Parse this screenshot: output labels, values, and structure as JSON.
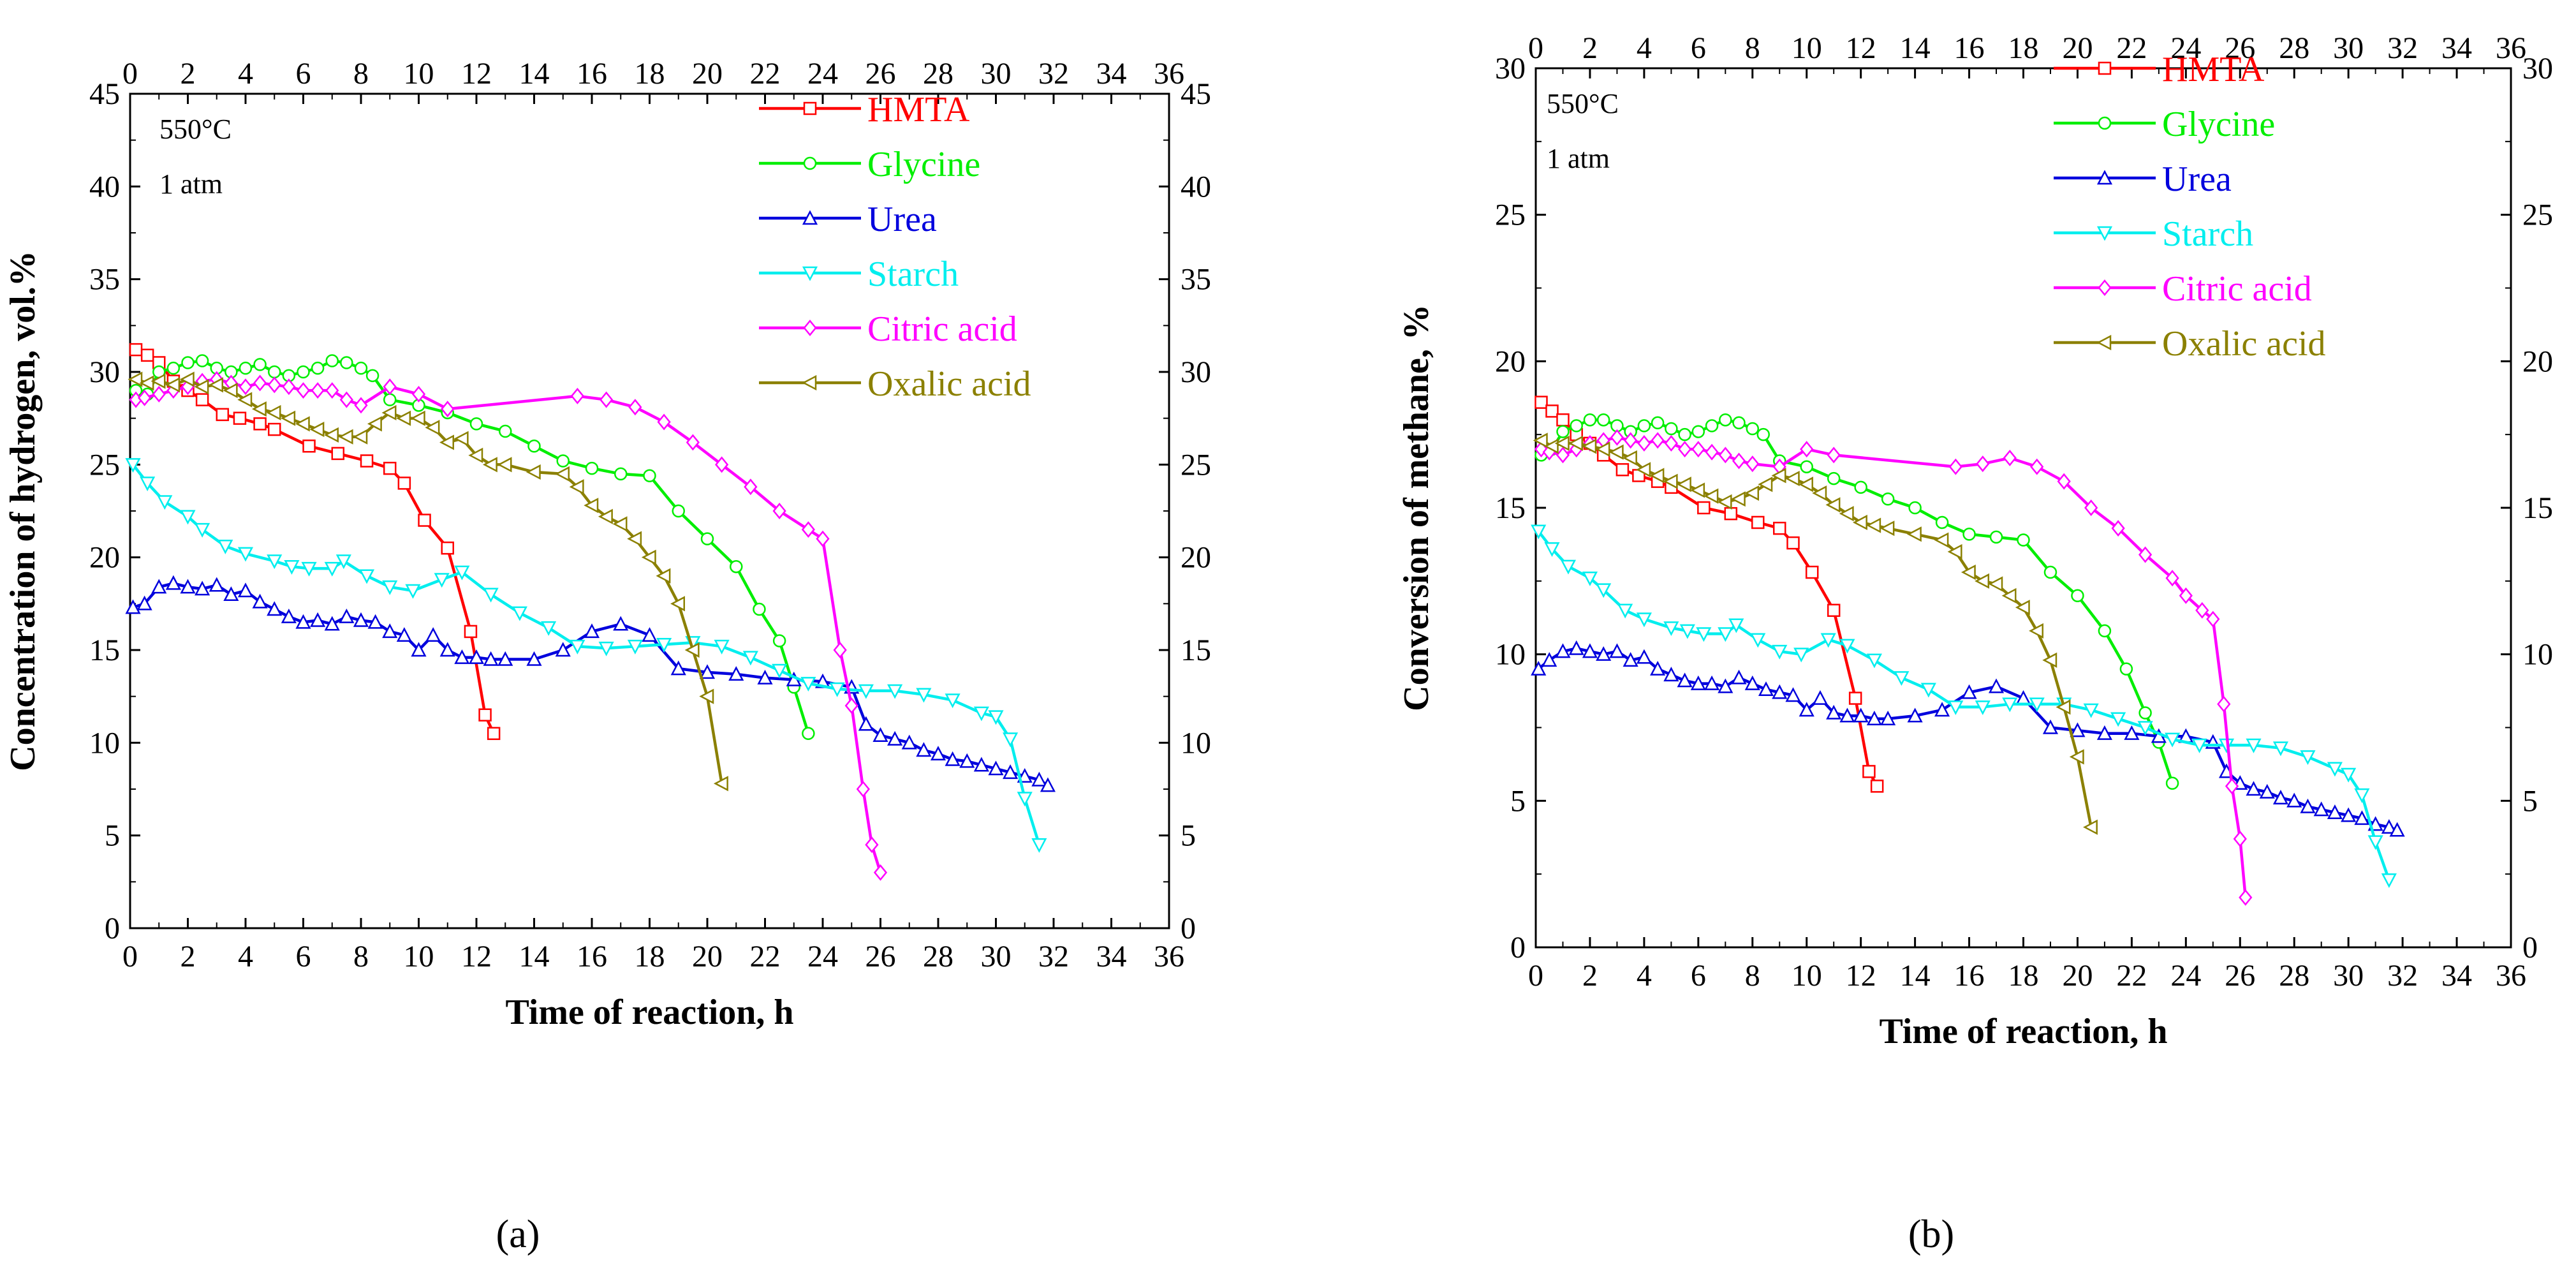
{
  "colors": {
    "HMTA": "#ff0000",
    "Glycine": "#00ee00",
    "Urea": "#0000dd",
    "Starch": "#00eeee",
    "Citric acid": "#ff00ff",
    "Oxalic acid": "#8b8000"
  },
  "markers": {
    "HMTA": "square",
    "Glycine": "circle",
    "Urea": "triangle-up",
    "Starch": "triangle-down",
    "Citric acid": "diamond",
    "Oxalic acid": "triangle-left"
  },
  "chart_data": [
    {
      "type": "line",
      "panel_label": "(a)",
      "xlabel": "Time of reaction, h",
      "ylabel": "Concentration of hydrogen, vol.%",
      "xlim": [
        0,
        36
      ],
      "ylim": [
        0,
        45
      ],
      "xticks": [
        0,
        2,
        4,
        6,
        8,
        10,
        12,
        14,
        16,
        18,
        20,
        22,
        24,
        26,
        28,
        30,
        32,
        34,
        36
      ],
      "yticks": [
        0,
        5,
        10,
        15,
        20,
        25,
        30,
        35,
        40,
        45
      ],
      "annotations": [
        "550°C",
        "1 atm"
      ],
      "legend_position": "top-right",
      "series": [
        {
          "name": "HMTA",
          "x": [
            0.2,
            0.6,
            1.0,
            1.5,
            2.0,
            2.5,
            3.2,
            3.8,
            4.5,
            5.0,
            6.2,
            7.2,
            8.2,
            9.0,
            9.5,
            10.2,
            11.0,
            11.8,
            12.3,
            12.6
          ],
          "y": [
            31.2,
            30.9,
            30.5,
            29.5,
            29.0,
            28.5,
            27.7,
            27.5,
            27.2,
            26.9,
            26.0,
            25.6,
            25.2,
            24.8,
            24.0,
            22.0,
            20.5,
            16.0,
            11.5,
            10.5
          ]
        },
        {
          "name": "Glycine",
          "x": [
            0.2,
            0.6,
            1.0,
            1.5,
            2.0,
            2.5,
            3.0,
            3.5,
            4.0,
            4.5,
            5.0,
            5.5,
            6.0,
            6.5,
            7.0,
            7.5,
            8.0,
            8.4,
            9.0,
            10.0,
            11.0,
            12.0,
            13.0,
            14.0,
            15.0,
            16.0,
            17.0,
            18.0,
            19.0,
            20.0,
            21.0,
            21.8,
            22.5,
            23.0,
            23.5
          ],
          "y": [
            29.0,
            28.8,
            30.0,
            30.2,
            30.5,
            30.6,
            30.2,
            30.0,
            30.2,
            30.4,
            30.0,
            29.8,
            30.0,
            30.2,
            30.6,
            30.5,
            30.2,
            29.8,
            28.5,
            28.2,
            27.8,
            27.2,
            26.8,
            26.0,
            25.2,
            24.8,
            24.5,
            24.4,
            22.5,
            21.0,
            19.5,
            17.2,
            15.5,
            13.0,
            10.5
          ]
        },
        {
          "name": "Urea",
          "x": [
            0.1,
            0.5,
            1.0,
            1.5,
            2.0,
            2.5,
            3.0,
            3.5,
            4.0,
            4.5,
            5.0,
            5.5,
            6.0,
            6.5,
            7.0,
            7.5,
            8.0,
            8.5,
            9.0,
            9.5,
            10.0,
            10.5,
            11.0,
            11.5,
            12.0,
            12.5,
            13.0,
            14.0,
            15.0,
            16.0,
            17.0,
            18.0,
            19.0,
            20.0,
            21.0,
            22.0,
            23.0,
            24.0,
            25.0,
            25.5,
            26.0,
            26.5,
            27.0,
            27.5,
            28.0,
            28.5,
            29.0,
            29.5,
            30.0,
            30.5,
            31.0,
            31.5,
            31.8
          ],
          "y": [
            17.3,
            17.5,
            18.4,
            18.6,
            18.4,
            18.3,
            18.5,
            18.0,
            18.2,
            17.6,
            17.2,
            16.8,
            16.5,
            16.6,
            16.4,
            16.8,
            16.6,
            16.5,
            16.0,
            15.8,
            15.0,
            15.8,
            15.0,
            14.6,
            14.6,
            14.5,
            14.5,
            14.5,
            15.0,
            16.0,
            16.4,
            15.8,
            14.0,
            13.8,
            13.7,
            13.5,
            13.4,
            13.3,
            13.0,
            11.0,
            10.4,
            10.2,
            10.0,
            9.6,
            9.4,
            9.1,
            9.0,
            8.8,
            8.6,
            8.4,
            8.2,
            8.0,
            7.7
          ]
        },
        {
          "name": "Starch",
          "x": [
            0.1,
            0.6,
            1.2,
            2.0,
            2.5,
            3.3,
            4.0,
            5.0,
            5.6,
            6.2,
            7.0,
            7.4,
            8.2,
            9.0,
            9.8,
            10.8,
            11.5,
            12.5,
            13.5,
            14.5,
            15.5,
            16.5,
            17.5,
            18.5,
            19.5,
            20.5,
            21.5,
            22.5,
            23.5,
            24.5,
            25.5,
            26.5,
            27.5,
            28.5,
            29.5,
            30.0,
            30.5,
            31.0,
            31.5
          ],
          "y": [
            25.0,
            24.0,
            23.0,
            22.2,
            21.5,
            20.6,
            20.2,
            19.8,
            19.5,
            19.4,
            19.4,
            19.8,
            19.0,
            18.4,
            18.2,
            18.8,
            19.2,
            18.0,
            17.0,
            16.2,
            15.2,
            15.1,
            15.2,
            15.3,
            15.4,
            15.2,
            14.6,
            13.9,
            13.2,
            12.9,
            12.8,
            12.8,
            12.6,
            12.3,
            11.6,
            11.4,
            10.2,
            7.0,
            4.5
          ]
        },
        {
          "name": "Citric acid",
          "x": [
            0.2,
            0.5,
            1.0,
            1.5,
            2.0,
            2.5,
            3.0,
            3.5,
            4.0,
            4.5,
            5.0,
            5.5,
            6.0,
            6.5,
            7.0,
            7.5,
            8.0,
            9.0,
            10.0,
            11.0,
            15.5,
            16.5,
            17.5,
            18.5,
            19.5,
            20.5,
            21.5,
            22.5,
            23.5,
            24.0,
            24.6,
            25.0,
            25.4,
            25.7,
            26.0
          ],
          "y": [
            28.5,
            28.6,
            28.8,
            29.0,
            29.2,
            29.5,
            29.6,
            29.4,
            29.2,
            29.4,
            29.3,
            29.2,
            29.0,
            29.0,
            29.0,
            28.5,
            28.2,
            29.2,
            28.8,
            28.0,
            28.7,
            28.5,
            28.1,
            27.3,
            26.2,
            25.0,
            23.8,
            22.5,
            21.5,
            21.0,
            15.0,
            12.0,
            7.5,
            4.5,
            3.0
          ]
        },
        {
          "name": "Oxalic acid",
          "x": [
            0.2,
            0.6,
            1.0,
            1.5,
            2.0,
            2.5,
            3.0,
            3.5,
            4.0,
            4.5,
            5.0,
            5.5,
            6.0,
            6.5,
            7.0,
            7.5,
            8.0,
            8.5,
            9.0,
            9.5,
            10.0,
            10.5,
            11.0,
            11.5,
            12.0,
            12.5,
            13.0,
            14.0,
            15.0,
            15.5,
            16.0,
            16.5,
            17.0,
            17.5,
            18.0,
            18.5,
            19.0,
            19.5,
            20.0,
            20.5
          ],
          "y": [
            29.6,
            29.4,
            29.5,
            29.3,
            29.6,
            29.2,
            29.3,
            29.0,
            28.5,
            28.0,
            27.8,
            27.5,
            27.2,
            26.9,
            26.6,
            26.5,
            26.5,
            27.2,
            27.8,
            27.5,
            27.5,
            27.0,
            26.2,
            26.4,
            25.5,
            25.0,
            25.0,
            24.6,
            24.5,
            23.8,
            22.8,
            22.2,
            21.8,
            21.0,
            20.0,
            19.0,
            17.5,
            15.0,
            12.5,
            7.8
          ]
        }
      ]
    },
    {
      "type": "line",
      "panel_label": "(b)",
      "xlabel": "Time of reaction, h",
      "ylabel": "Conversion of methane, %",
      "xlim": [
        0,
        36
      ],
      "ylim": [
        0,
        30
      ],
      "xticks": [
        0,
        2,
        4,
        6,
        8,
        10,
        12,
        14,
        16,
        18,
        20,
        22,
        24,
        26,
        28,
        30,
        32,
        34,
        36
      ],
      "yticks": [
        0,
        5,
        10,
        15,
        20,
        25,
        30
      ],
      "annotations": [
        "550°C",
        "1 atm"
      ],
      "legend_position": "top-right",
      "series": [
        {
          "name": "HMTA",
          "x": [
            0.2,
            0.6,
            1.0,
            1.5,
            2.0,
            2.5,
            3.2,
            3.8,
            4.5,
            5.0,
            6.2,
            7.2,
            8.2,
            9.0,
            9.5,
            10.2,
            11.0,
            11.8,
            12.3,
            12.6
          ],
          "y": [
            18.6,
            18.3,
            18.0,
            17.5,
            17.2,
            16.8,
            16.3,
            16.1,
            15.9,
            15.7,
            15.0,
            14.8,
            14.5,
            14.3,
            13.8,
            12.8,
            11.5,
            8.5,
            6.0,
            5.5
          ]
        },
        {
          "name": "Glycine",
          "x": [
            0.2,
            0.6,
            1.0,
            1.5,
            2.0,
            2.5,
            3.0,
            3.5,
            4.0,
            4.5,
            5.0,
            5.5,
            6.0,
            6.5,
            7.0,
            7.5,
            8.0,
            8.4,
            9.0,
            10.0,
            11.0,
            12.0,
            13.0,
            14.0,
            15.0,
            16.0,
            17.0,
            18.0,
            19.0,
            20.0,
            21.0,
            21.8,
            22.5,
            23.0,
            23.5
          ],
          "y": [
            16.8,
            17.0,
            17.6,
            17.8,
            18.0,
            18.0,
            17.8,
            17.6,
            17.8,
            17.9,
            17.7,
            17.5,
            17.6,
            17.8,
            18.0,
            17.9,
            17.7,
            17.5,
            16.6,
            16.4,
            16.0,
            15.7,
            15.3,
            15.0,
            14.5,
            14.1,
            14.0,
            13.9,
            12.8,
            12.0,
            10.8,
            9.5,
            8.0,
            7.0,
            5.6
          ]
        },
        {
          "name": "Urea",
          "x": [
            0.1,
            0.5,
            1.0,
            1.5,
            2.0,
            2.5,
            3.0,
            3.5,
            4.0,
            4.5,
            5.0,
            5.5,
            6.0,
            6.5,
            7.0,
            7.5,
            8.0,
            8.5,
            9.0,
            9.5,
            10.0,
            10.5,
            11.0,
            11.5,
            12.0,
            12.5,
            13.0,
            14.0,
            15.0,
            16.0,
            17.0,
            18.0,
            19.0,
            20.0,
            21.0,
            22.0,
            23.0,
            24.0,
            25.0,
            25.5,
            26.0,
            26.5,
            27.0,
            27.5,
            28.0,
            28.5,
            29.0,
            29.5,
            30.0,
            30.5,
            31.0,
            31.5,
            31.8
          ],
          "y": [
            9.5,
            9.8,
            10.1,
            10.2,
            10.1,
            10.0,
            10.1,
            9.8,
            9.9,
            9.5,
            9.3,
            9.1,
            9.0,
            9.0,
            8.9,
            9.2,
            9.0,
            8.8,
            8.7,
            8.6,
            8.1,
            8.5,
            8.0,
            7.9,
            7.9,
            7.8,
            7.8,
            7.9,
            8.1,
            8.7,
            8.9,
            8.5,
            7.5,
            7.4,
            7.3,
            7.3,
            7.2,
            7.2,
            7.0,
            6.0,
            5.6,
            5.4,
            5.3,
            5.1,
            5.0,
            4.8,
            4.7,
            4.6,
            4.5,
            4.4,
            4.2,
            4.1,
            4.0
          ]
        },
        {
          "name": "Starch",
          "x": [
            0.1,
            0.6,
            1.2,
            2.0,
            2.5,
            3.3,
            4.0,
            5.0,
            5.6,
            6.2,
            7.0,
            7.4,
            8.2,
            9.0,
            9.8,
            10.8,
            11.5,
            12.5,
            13.5,
            14.5,
            15.5,
            16.5,
            17.5,
            18.5,
            19.5,
            20.5,
            21.5,
            22.5,
            23.5,
            24.5,
            25.5,
            26.5,
            27.5,
            28.5,
            29.5,
            30.0,
            30.5,
            31.0,
            31.5
          ],
          "y": [
            14.2,
            13.6,
            13.0,
            12.6,
            12.2,
            11.5,
            11.2,
            10.9,
            10.8,
            10.7,
            10.7,
            11.0,
            10.5,
            10.1,
            10.0,
            10.5,
            10.3,
            9.8,
            9.2,
            8.8,
            8.2,
            8.2,
            8.3,
            8.3,
            8.3,
            8.1,
            7.8,
            7.5,
            7.1,
            6.9,
            6.9,
            6.9,
            6.8,
            6.5,
            6.1,
            5.9,
            5.2,
            3.6,
            2.3
          ]
        },
        {
          "name": "Citric acid",
          "x": [
            0.2,
            0.5,
            1.0,
            1.5,
            2.0,
            2.5,
            3.0,
            3.5,
            4.0,
            4.5,
            5.0,
            5.5,
            6.0,
            6.5,
            7.0,
            7.5,
            8.0,
            9.0,
            10.0,
            11.0,
            15.5,
            16.5,
            17.5,
            18.5,
            19.5,
            20.5,
            21.5,
            22.5,
            23.5,
            24.0,
            24.6,
            25.0,
            25.4,
            25.7,
            26.0,
            26.2
          ],
          "y": [
            17.0,
            16.9,
            16.8,
            17.0,
            17.2,
            17.3,
            17.4,
            17.3,
            17.2,
            17.3,
            17.2,
            17.0,
            17.0,
            16.9,
            16.8,
            16.6,
            16.5,
            16.4,
            17.0,
            16.8,
            16.4,
            16.5,
            16.7,
            16.4,
            15.9,
            15.0,
            14.3,
            13.4,
            12.6,
            12.0,
            11.5,
            11.2,
            8.3,
            5.5,
            3.7,
            1.7
          ]
        },
        {
          "name": "Oxalic acid",
          "x": [
            0.2,
            0.6,
            1.0,
            1.5,
            2.0,
            2.5,
            3.0,
            3.5,
            4.0,
            4.5,
            5.0,
            5.5,
            6.0,
            6.5,
            7.0,
            7.5,
            8.0,
            8.5,
            9.0,
            9.5,
            10.0,
            10.5,
            11.0,
            11.5,
            12.0,
            12.5,
            13.0,
            14.0,
            15.0,
            15.5,
            16.0,
            16.5,
            17.0,
            17.5,
            18.0,
            18.5,
            19.0,
            19.5,
            20.0,
            20.5
          ],
          "y": [
            17.3,
            17.1,
            17.2,
            17.2,
            17.1,
            17.0,
            16.9,
            16.7,
            16.3,
            16.1,
            15.9,
            15.8,
            15.6,
            15.4,
            15.2,
            15.3,
            15.5,
            15.8,
            16.1,
            16.0,
            15.8,
            15.5,
            15.1,
            14.8,
            14.5,
            14.4,
            14.3,
            14.1,
            13.9,
            13.5,
            12.8,
            12.5,
            12.4,
            12.0,
            11.6,
            10.8,
            9.8,
            8.2,
            6.5,
            4.1
          ]
        }
      ]
    }
  ]
}
